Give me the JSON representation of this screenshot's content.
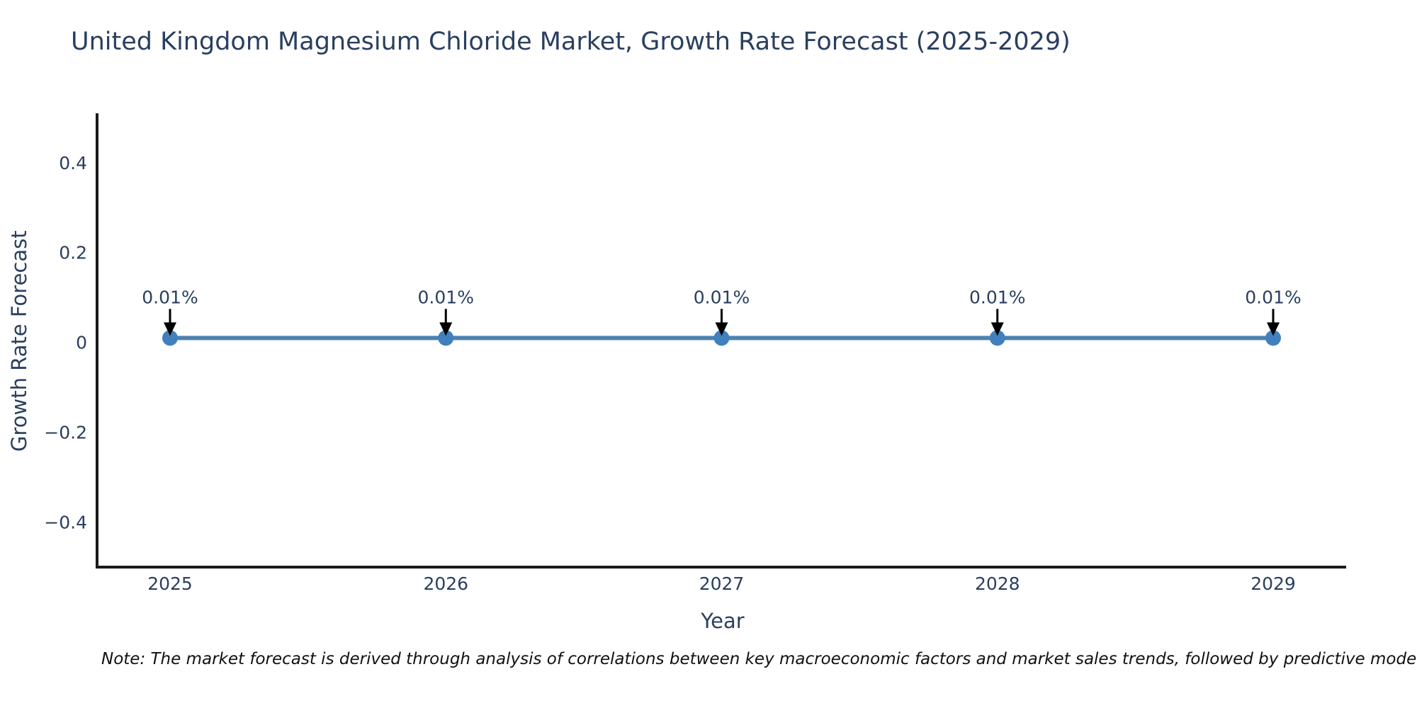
{
  "chart_data": {
    "type": "line",
    "title": "United Kingdom Magnesium Chloride Market, Growth Rate Forecast (2025-2029)",
    "xlabel": "Year",
    "ylabel": "Growth Rate Forecast",
    "categories": [
      "2025",
      "2026",
      "2027",
      "2028",
      "2029"
    ],
    "series": [
      {
        "name": "Growth Rate Forecast",
        "values": [
          0.01,
          0.01,
          0.01,
          0.01,
          0.01
        ],
        "point_labels": [
          "0.01%",
          "0.01%",
          "0.01%",
          "0.01%",
          "0.01%"
        ]
      }
    ],
    "y_ticks": [
      {
        "value": 0.4,
        "label": "0.4"
      },
      {
        "value": 0.2,
        "label": "0.2"
      },
      {
        "value": 0,
        "label": "0"
      },
      {
        "value": -0.2,
        "label": "−0.2"
      },
      {
        "value": -0.4,
        "label": "−0.4"
      }
    ],
    "ylim": [
      -0.5,
      0.51
    ],
    "grid": false,
    "legend_position": "none",
    "annotations_have_arrows": true
  },
  "note": {
    "text": "Note: The market forecast is derived through analysis of correlations between key macroeconomic factors and market sales trends, followed by predictive modeling to project future sa"
  },
  "colors": {
    "line": "#4d82b0",
    "marker": "#4280bd",
    "axis_line": "#1a1a1a",
    "text": "#2a3f5f",
    "annotation_arrow": "#000000",
    "note_text": "#111111",
    "background": "#ffffff"
  }
}
